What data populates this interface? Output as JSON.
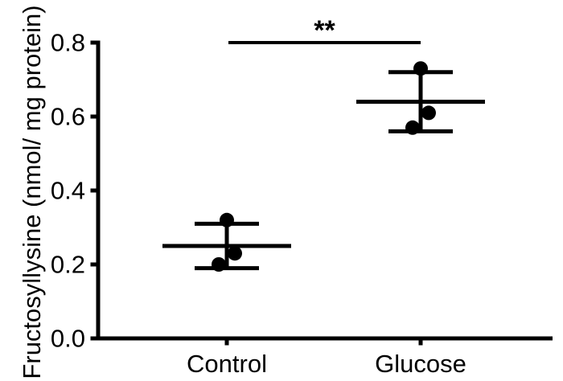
{
  "figure": {
    "background": "#ffffff",
    "foreground": "#000000"
  },
  "chart_data": {
    "type": "scatter",
    "title": "",
    "xlabel": "",
    "ylabel": "Fructosyllysine (nmol/ mg protein)",
    "ylim": [
      0.0,
      0.8
    ],
    "yticks": [
      "0.0",
      "0.2",
      "0.4",
      "0.6",
      "0.8"
    ],
    "ytick_values": [
      0.0,
      0.2,
      0.4,
      0.6,
      0.8
    ],
    "categories": [
      "Control",
      "Glucose"
    ],
    "series": [
      {
        "name": "Control",
        "points": [
          0.32,
          0.23,
          0.2
        ],
        "mean": 0.25,
        "error_low": 0.19,
        "error_high": 0.31
      },
      {
        "name": "Glucose",
        "points": [
          0.73,
          0.61,
          0.57
        ],
        "mean": 0.64,
        "error_low": 0.56,
        "error_high": 0.72
      }
    ],
    "significance": {
      "label": "**",
      "groups": [
        "Control",
        "Glucose"
      ]
    },
    "grid": false,
    "legend": false
  }
}
